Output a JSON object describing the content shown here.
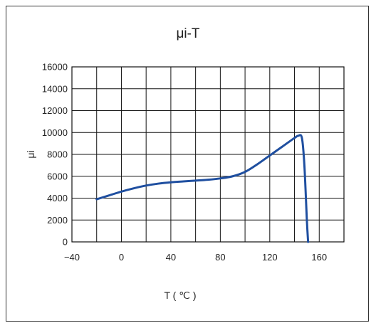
{
  "chart_data": {
    "type": "line",
    "title": "μi-T",
    "xlabel": "T ( ℃ )",
    "ylabel": "μi",
    "xlim": [
      -40,
      180
    ],
    "ylim": [
      0,
      16000
    ],
    "x_ticks": [
      -40,
      0,
      40,
      80,
      120,
      160
    ],
    "y_ticks": [
      0,
      2000,
      4000,
      6000,
      8000,
      10000,
      12000,
      14000,
      16000
    ],
    "x_tick_labels": [
      "−40",
      "0",
      "40",
      "80",
      "120",
      "160"
    ],
    "y_tick_labels": [
      "0",
      "2000",
      "4000",
      "6000",
      "8000",
      "10000",
      "12000",
      "14000",
      "16000"
    ],
    "grid": true,
    "series": [
      {
        "color": "#1f4fa0",
        "x": [
          -20,
          -10,
          0,
          10,
          20,
          30,
          40,
          50,
          60,
          70,
          80,
          90,
          100,
          110,
          120,
          130,
          140,
          143,
          146,
          148,
          150,
          151
        ],
        "y": [
          3900,
          4250,
          4600,
          4900,
          5150,
          5330,
          5450,
          5530,
          5600,
          5680,
          5800,
          6000,
          6400,
          7100,
          7900,
          8700,
          9500,
          9700,
          9500,
          7000,
          2000,
          0
        ]
      }
    ]
  }
}
